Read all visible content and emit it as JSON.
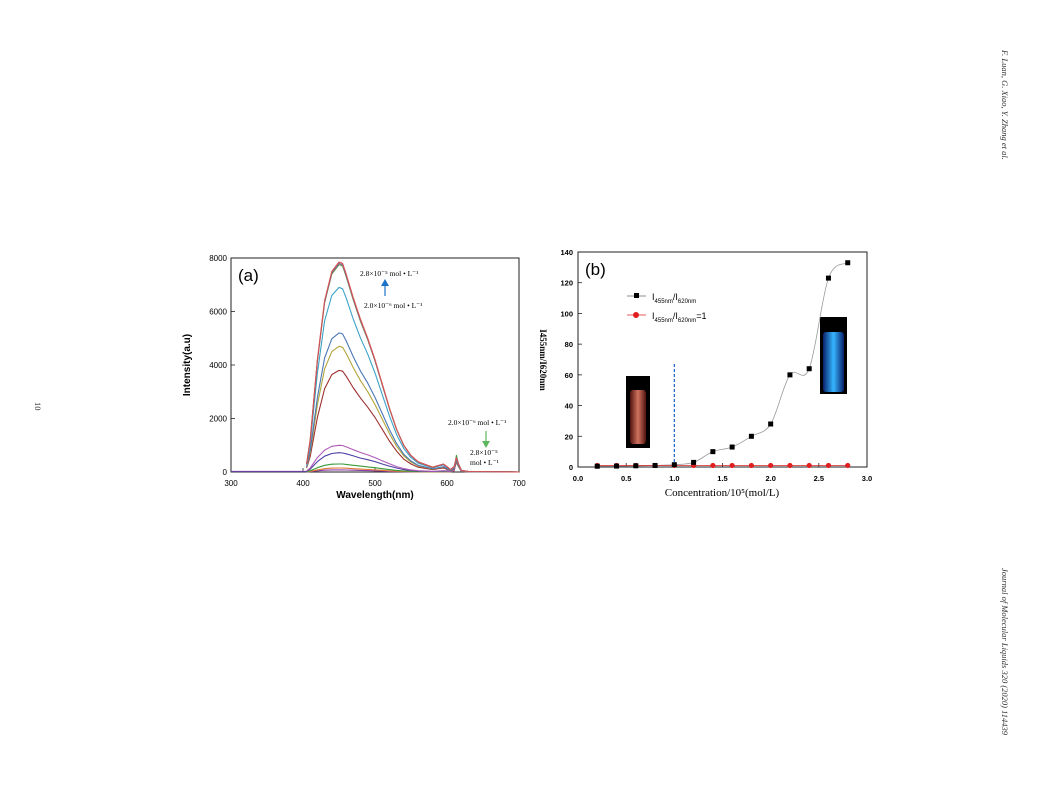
{
  "page": {
    "running_head": "F. Luan, G. Xiao, Y. Zhang et al.",
    "journal_ref": "Journal of Molecular Liquids 320 (2020) 114439",
    "page_number": "10"
  },
  "chart_data": [
    {
      "panel": "(a)",
      "type": "line",
      "xlabel": "Wavelength(nm)",
      "ylabel": "Intensity(a.u)",
      "xlim": [
        300,
        700
      ],
      "ylim": [
        0,
        8000
      ],
      "xticks": [
        "300",
        "400",
        "500",
        "600",
        "700"
      ],
      "yticks": [
        "0",
        "2000",
        "4000",
        "6000",
        "8000"
      ],
      "annotations": {
        "top_high": "2.8×10⁻⁵ mol • L⁻¹",
        "top_low": "2.0×10⁻⁶ mol • L⁻¹",
        "right_low": "2.0×10⁻⁶ mol • L⁻¹",
        "right_high_1": "2.8×10⁻⁵",
        "right_high_2": "mol • L⁻¹"
      },
      "series": [
        {
          "peak": 7850,
          "color": "#d9534f",
          "x": [
            405,
            410,
            420,
            430,
            440,
            450,
            455,
            460,
            470,
            480,
            490,
            500,
            510,
            520,
            530,
            540,
            550,
            560,
            580,
            590,
            595,
            600,
            605,
            610,
            613,
            616,
            620,
            630,
            700
          ],
          "values": [
            300,
            1200,
            4200,
            6400,
            7500,
            7850,
            7800,
            7400,
            6500,
            5700,
            5000,
            4200,
            3300,
            2400,
            1600,
            1000,
            620,
            380,
            180,
            260,
            300,
            200,
            90,
            200,
            520,
            300,
            60,
            20,
            0
          ]
        },
        {
          "peak": 7800,
          "color": "#7f5fa8",
          "x": [
            405,
            410,
            420,
            430,
            440,
            450,
            455,
            460,
            470,
            480,
            490,
            500,
            510,
            520,
            530,
            540,
            550,
            560,
            580,
            590,
            595,
            600,
            605,
            610,
            613,
            616,
            620,
            630,
            700
          ],
          "values": [
            300,
            1190,
            4170,
            6360,
            7450,
            7800,
            7750,
            7350,
            6460,
            5660,
            4970,
            4170,
            3280,
            2380,
            1590,
            990,
            610,
            370,
            180,
            250,
            290,
            190,
            90,
            200,
            540,
            300,
            60,
            20,
            0
          ]
        },
        {
          "peak": 7750,
          "color": "#5a9a3c",
          "x": [
            405,
            410,
            420,
            430,
            440,
            450,
            455,
            460,
            470,
            480,
            490,
            500,
            510,
            520,
            530,
            540,
            550,
            560,
            580,
            590,
            595,
            600,
            605,
            610,
            613,
            616,
            620,
            630,
            700
          ],
          "values": [
            300,
            1180,
            4140,
            6320,
            7400,
            7750,
            7700,
            7300,
            6420,
            5620,
            4940,
            4150,
            3260,
            2370,
            1580,
            990,
            610,
            370,
            170,
            250,
            290,
            190,
            90,
            200,
            560,
            300,
            60,
            20,
            0
          ]
        },
        {
          "peak": 6900,
          "color": "#3ba3c7",
          "x": [
            405,
            410,
            420,
            430,
            440,
            450,
            455,
            460,
            470,
            480,
            490,
            500,
            510,
            520,
            530,
            540,
            550,
            560,
            580,
            590,
            595,
            600,
            605,
            610,
            613,
            616,
            620,
            630,
            700
          ],
          "values": [
            270,
            1060,
            3700,
            5650,
            6600,
            6900,
            6850,
            6500,
            5700,
            5000,
            4400,
            3700,
            2900,
            2100,
            1400,
            880,
            540,
            330,
            160,
            230,
            270,
            170,
            80,
            190,
            500,
            280,
            55,
            20,
            0
          ]
        },
        {
          "peak": 5200,
          "color": "#4a78b5",
          "x": [
            405,
            410,
            420,
            430,
            440,
            450,
            455,
            460,
            470,
            480,
            490,
            500,
            510,
            520,
            530,
            540,
            550,
            560,
            580,
            590,
            595,
            600,
            605,
            610,
            613,
            616,
            620,
            630,
            700
          ],
          "values": [
            200,
            800,
            2790,
            4260,
            4980,
            5200,
            5160,
            4900,
            4300,
            3770,
            3320,
            2790,
            2190,
            1590,
            1060,
            660,
            410,
            250,
            120,
            170,
            200,
            130,
            60,
            150,
            420,
            230,
            45,
            15,
            0
          ]
        },
        {
          "peak": 4700,
          "color": "#b3a53a",
          "x": [
            405,
            410,
            420,
            430,
            440,
            450,
            455,
            460,
            470,
            480,
            490,
            500,
            510,
            520,
            530,
            540,
            550,
            560,
            580,
            590,
            595,
            600,
            605,
            610,
            613,
            616,
            620,
            630,
            700
          ],
          "values": [
            180,
            720,
            2520,
            3850,
            4500,
            4700,
            4660,
            4430,
            3890,
            3410,
            3000,
            2520,
            1980,
            1440,
            960,
            600,
            370,
            230,
            110,
            160,
            190,
            120,
            55,
            140,
            400,
            220,
            40,
            15,
            0
          ]
        },
        {
          "peak": 3800,
          "color": "#9e2f2f",
          "x": [
            405,
            410,
            420,
            430,
            440,
            450,
            455,
            460,
            470,
            480,
            490,
            500,
            510,
            520,
            530,
            540,
            550,
            560,
            580,
            590,
            595,
            600,
            605,
            610,
            613,
            616,
            620,
            630,
            700
          ],
          "values": [
            150,
            580,
            2040,
            3110,
            3640,
            3800,
            3770,
            3580,
            3140,
            2760,
            2420,
            2040,
            1600,
            1160,
            780,
            480,
            300,
            180,
            90,
            130,
            150,
            100,
            45,
            120,
            360,
            200,
            35,
            10,
            0
          ]
        },
        {
          "peak": 1000,
          "color": "#b05ab8",
          "x": [
            405,
            410,
            420,
            430,
            440,
            450,
            455,
            460,
            470,
            480,
            490,
            500,
            510,
            520,
            530,
            540,
            550,
            560,
            580,
            590,
            595,
            600,
            605,
            610,
            613,
            616,
            620,
            630,
            700
          ],
          "values": [
            40,
            150,
            540,
            820,
            960,
            1000,
            990,
            940,
            830,
            730,
            640,
            540,
            420,
            310,
            200,
            130,
            80,
            50,
            25,
            40,
            50,
            35,
            20,
            80,
            400,
            220,
            30,
            10,
            0
          ]
        },
        {
          "peak": 720,
          "color": "#4b3fa0",
          "x": [
            405,
            410,
            420,
            430,
            440,
            450,
            455,
            460,
            470,
            480,
            490,
            500,
            510,
            520,
            530,
            540,
            550,
            560,
            580,
            590,
            595,
            600,
            605,
            610,
            613,
            616,
            620,
            630,
            700
          ],
          "values": [
            30,
            110,
            390,
            590,
            690,
            720,
            710,
            680,
            600,
            520,
            460,
            390,
            300,
            220,
            150,
            90,
            60,
            35,
            20,
            30,
            40,
            30,
            20,
            80,
            420,
            230,
            30,
            10,
            0
          ]
        },
        {
          "peak": 300,
          "color": "#3a9a3a",
          "x": [
            405,
            410,
            420,
            430,
            440,
            450,
            455,
            460,
            470,
            480,
            490,
            500,
            510,
            520,
            530,
            540,
            550,
            560,
            580,
            590,
            595,
            600,
            605,
            610,
            613,
            616,
            620,
            630,
            700
          ],
          "values": [
            15,
            50,
            160,
            250,
            290,
            300,
            298,
            285,
            250,
            220,
            190,
            160,
            125,
            90,
            60,
            40,
            25,
            15,
            10,
            15,
            20,
            15,
            12,
            80,
            620,
            300,
            30,
            10,
            0
          ]
        },
        {
          "peak": 150,
          "color": "#e07a30",
          "x": [
            405,
            410,
            420,
            430,
            440,
            450,
            455,
            460,
            470,
            480,
            490,
            500,
            510,
            520,
            530,
            540,
            550,
            560,
            580,
            590,
            595,
            600,
            605,
            610,
            613,
            616,
            620,
            630,
            700
          ],
          "values": [
            8,
            25,
            80,
            125,
            145,
            150,
            149,
            142,
            125,
            110,
            95,
            80,
            62,
            45,
            30,
            20,
            12,
            8,
            5,
            8,
            10,
            8,
            6,
            60,
            500,
            250,
            25,
            8,
            0
          ]
        },
        {
          "peak": 80,
          "color": "#8a3fb0",
          "x": [
            405,
            410,
            420,
            430,
            440,
            450,
            455,
            460,
            470,
            480,
            490,
            500,
            510,
            520,
            530,
            540,
            550,
            560,
            580,
            590,
            595,
            600,
            605,
            610,
            613,
            616,
            620,
            630,
            700
          ],
          "values": [
            4,
            14,
            43,
            67,
            77,
            80,
            79,
            76,
            67,
            59,
            51,
            43,
            33,
            24,
            16,
            10,
            6,
            4,
            3,
            4,
            5,
            4,
            3,
            50,
            450,
            230,
            20,
            6,
            0
          ]
        }
      ]
    },
    {
      "panel": "(b)",
      "type": "scatter",
      "xlabel": "Concentration/10⁵(mol/L)",
      "ylabel": "I455nm/I620nm",
      "xlim": [
        0.0,
        3.0
      ],
      "ylim": [
        0,
        140
      ],
      "xticks": [
        "0.0",
        "0.5",
        "1.0",
        "1.5",
        "2.0",
        "2.5",
        "3.0"
      ],
      "yticks": [
        "0",
        "20",
        "40",
        "60",
        "80",
        "100",
        "120",
        "140"
      ],
      "vline_x": 1.0,
      "legend": {
        "entry1_main": "I",
        "entry1_sub1": "455nm",
        "entry1_mid": "/I",
        "entry1_sub2": "620nm",
        "entry2_main": "I",
        "entry2_sub1": "455nm",
        "entry2_mid": "/I",
        "entry2_sub2": "620nm",
        "entry2_tail": "=1"
      },
      "series": [
        {
          "name": "I455nm/I620nm",
          "color": "#000000",
          "marker": "square",
          "x": [
            0.2,
            0.4,
            0.6,
            0.8,
            1.0,
            1.2,
            1.4,
            1.6,
            1.8,
            2.0,
            2.2,
            2.4,
            2.6,
            2.8
          ],
          "values": [
            0.5,
            0.6,
            0.8,
            1.0,
            1.5,
            3,
            10,
            13,
            20,
            28,
            60,
            64,
            123,
            133
          ]
        },
        {
          "name": "I455nm/I620nm=1",
          "color": "#e02020",
          "marker": "circle",
          "x": [
            0.2,
            0.4,
            0.6,
            0.8,
            1.0,
            1.2,
            1.4,
            1.6,
            1.8,
            2.0,
            2.2,
            2.4,
            2.6,
            2.8
          ],
          "values": [
            1,
            1,
            1,
            1,
            1,
            1,
            1,
            1,
            1,
            1,
            1,
            1,
            1,
            1
          ]
        }
      ],
      "insets": [
        {
          "name": "vial-left",
          "glow": "#e25a3a"
        },
        {
          "name": "vial-right",
          "glow": "#2a8cff"
        }
      ]
    }
  ]
}
